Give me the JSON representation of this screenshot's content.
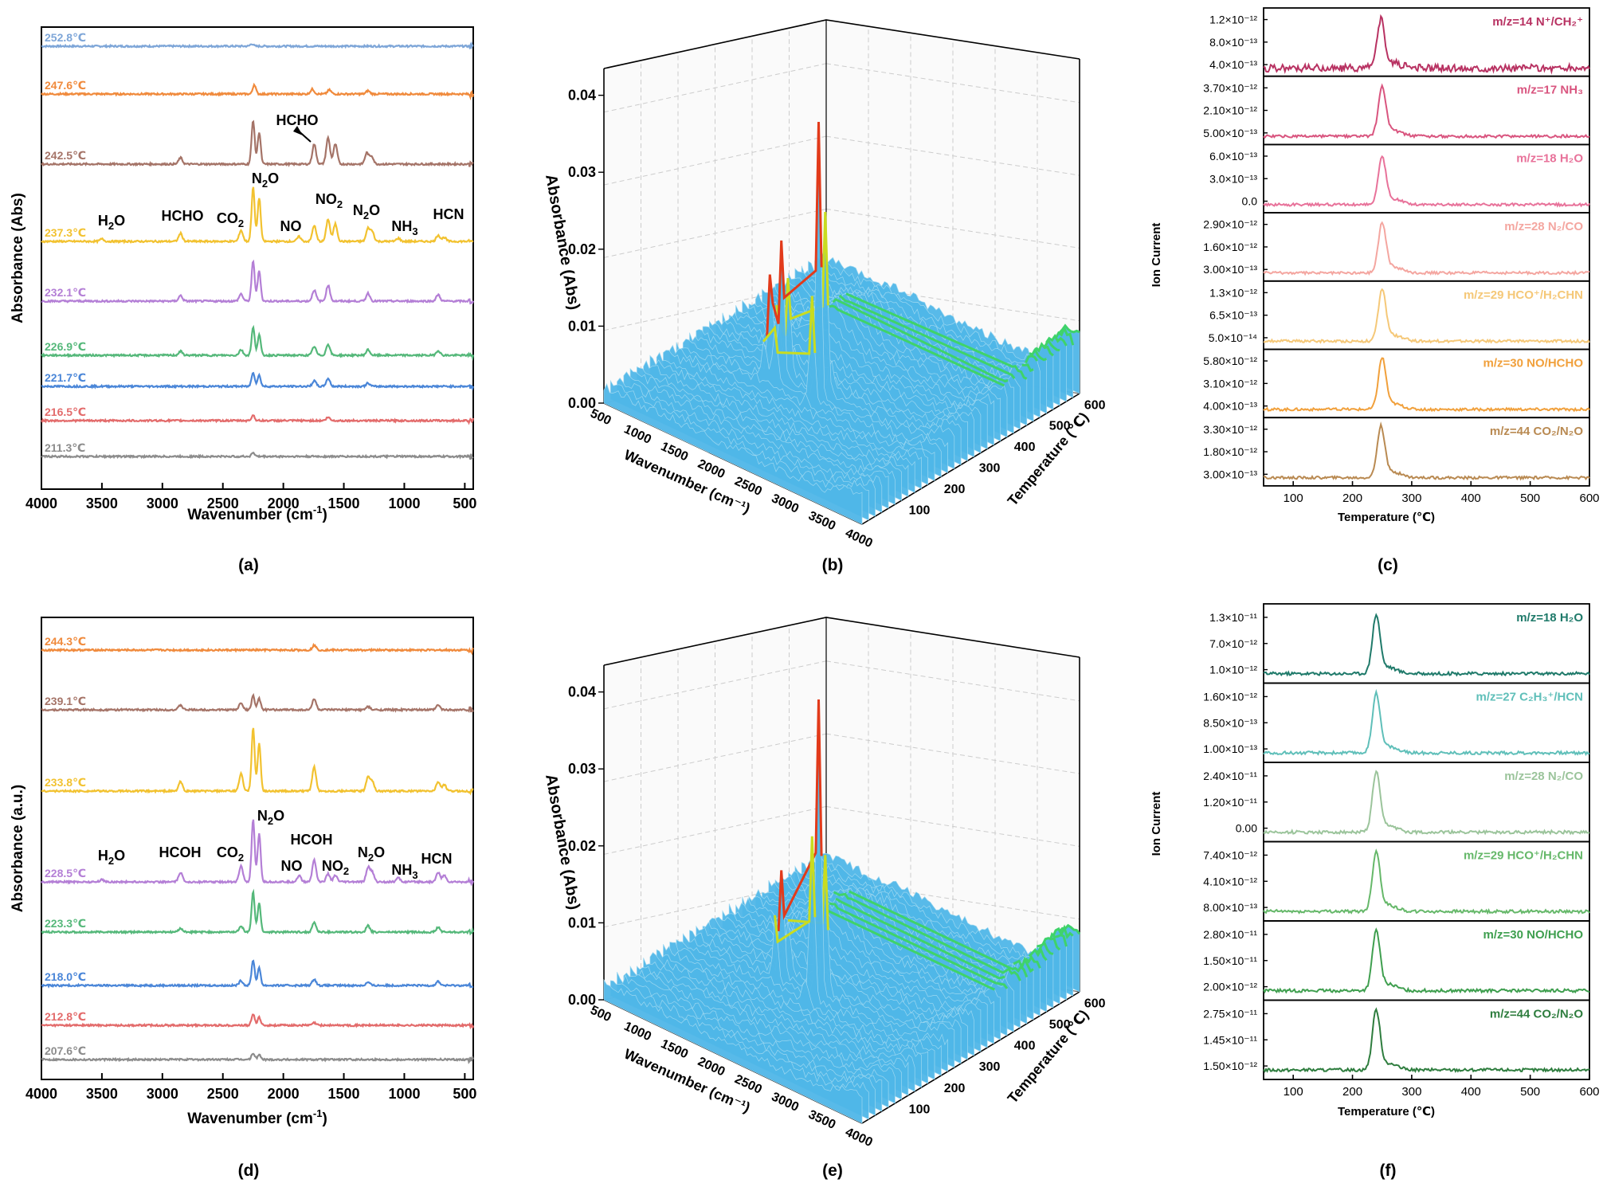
{
  "panel_labels": [
    "(a)",
    "(b)",
    "(c)",
    "(d)",
    "(e)",
    "(f)"
  ],
  "ftir": {
    "ylabel_a": "Absorbance (Abs)",
    "ylabel_d": "Absorbance (a.u.)",
    "xlabel_pre": "Wavenumber (cm",
    "xlabel_sup": "-1",
    "xlabel_post": ")",
    "xticks": [
      "4000",
      "3500",
      "3000",
      "2500",
      "2000",
      "1500",
      "1000",
      "500"
    ],
    "xtick_values": [
      4000,
      3500,
      3000,
      2500,
      2000,
      1500,
      1000,
      500
    ],
    "xlim": [
      4000,
      430
    ]
  },
  "surface": {
    "zlabel": "Absorbance (Abs)",
    "xlabel": "Wavenumber (cm⁻¹)",
    "ylabel": "Temperature (℃)",
    "zticks": [
      "0.00",
      "0.01",
      "0.02",
      "0.03",
      "0.04"
    ],
    "wticks": [
      "500",
      "1000",
      "1500",
      "2000",
      "2500",
      "3000",
      "3500",
      "4000"
    ],
    "tticks": [
      "100",
      "200",
      "300",
      "400",
      "500",
      "600"
    ]
  },
  "ms": {
    "ylabel": "Ion Current",
    "xlabel": "Temperature (℃)",
    "xticks": [
      "100",
      "200",
      "300",
      "400",
      "500",
      "600"
    ],
    "xtick_values": [
      100,
      200,
      300,
      400,
      500,
      600
    ],
    "xlim": [
      50,
      600
    ]
  },
  "chart_data": [
    {
      "panel": "(a)",
      "type": "line",
      "ylabel": "Absorbance (Abs)",
      "xlabel": "Wavenumber (cm-1)",
      "xlim": [
        4000,
        430
      ],
      "series": [
        {
          "name": "252.8℃",
          "color": "#7ea6d8",
          "peaks": [
            [
              2260,
              3
            ]
          ]
        },
        {
          "name": "247.6℃",
          "color": "#f08a3c",
          "peaks": [
            [
              2240,
              12
            ],
            [
              1760,
              6
            ],
            [
              1620,
              5
            ],
            [
              1300,
              4
            ]
          ]
        },
        {
          "name": "242.5℃",
          "color": "#a57468",
          "peaks": [
            [
              2850,
              8
            ],
            [
              2250,
              55
            ],
            [
              2200,
              40
            ],
            [
              1745,
              25
            ],
            [
              1630,
              33
            ],
            [
              1570,
              25
            ],
            [
              1310,
              14
            ],
            [
              1270,
              10
            ]
          ]
        },
        {
          "name": "237.3℃",
          "color": "#f2c230",
          "peaks": [
            [
              3500,
              3
            ],
            [
              2850,
              10
            ],
            [
              2350,
              14
            ],
            [
              2250,
              68
            ],
            [
              2200,
              55
            ],
            [
              1870,
              6
            ],
            [
              1745,
              20
            ],
            [
              1630,
              28
            ],
            [
              1570,
              22
            ],
            [
              1300,
              16
            ],
            [
              1265,
              12
            ],
            [
              1050,
              4
            ],
            [
              720,
              8
            ],
            [
              670,
              5
            ]
          ]
        },
        {
          "name": "232.1℃",
          "color": "#b47fd6",
          "peaks": [
            [
              2850,
              7
            ],
            [
              2350,
              9
            ],
            [
              2250,
              50
            ],
            [
              2200,
              38
            ],
            [
              1745,
              14
            ],
            [
              1630,
              20
            ],
            [
              1300,
              10
            ],
            [
              720,
              8
            ]
          ]
        },
        {
          "name": "226.9℃",
          "color": "#55b87a",
          "peaks": [
            [
              2850,
              5
            ],
            [
              2350,
              7
            ],
            [
              2250,
              35
            ],
            [
              2200,
              26
            ],
            [
              1745,
              11
            ],
            [
              1630,
              14
            ],
            [
              1300,
              7
            ],
            [
              720,
              6
            ]
          ]
        },
        {
          "name": "221.7℃",
          "color": "#4a86d8",
          "peaks": [
            [
              2250,
              18
            ],
            [
              2200,
              14
            ],
            [
              1745,
              7
            ],
            [
              1630,
              10
            ],
            [
              1300,
              4
            ]
          ]
        },
        {
          "name": "216.5℃",
          "color": "#e36b6b",
          "peaks": [
            [
              2250,
              7
            ],
            [
              1630,
              4
            ]
          ]
        },
        {
          "name": "211.3℃",
          "color": "#8c8c8c",
          "peaks": [
            [
              2250,
              5
            ]
          ]
        }
      ],
      "annotations": [
        "H2O",
        "HCHO",
        "CO2",
        "N2O",
        "NO",
        "NO2",
        "N2O",
        "NH3",
        "HCN",
        "HCHO"
      ]
    },
    {
      "panel": "(b)",
      "type": "area",
      "subtype": "3d-surface",
      "zlabel": "Absorbance (Abs)",
      "xlabel": "Wavenumber (cm-1)",
      "ylabel": "Temperature (℃)",
      "zlim": [
        0.0,
        0.04
      ],
      "xlim": [
        500,
        4000
      ],
      "ylim": [
        0,
        600
      ],
      "peaks": [
        {
          "wavenumber": 2250,
          "temperature": 240,
          "absorbance": 0.036
        },
        {
          "wavenumber": 1750,
          "temperature": 240,
          "absorbance": 0.018
        },
        {
          "wavenumber": 1600,
          "temperature": 240,
          "absorbance": 0.013
        }
      ]
    },
    {
      "panel": "(c)",
      "type": "line",
      "ylabel": "Ion Current",
      "xlabel": "Temperature (℃)",
      "xlim": [
        50,
        600
      ],
      "series": [
        {
          "name": "m/z=14  N⁺/CH₂⁺",
          "color": "#b83262",
          "yticks": [
            "1.2×10⁻¹²",
            "8.0×10⁻¹³",
            "4.0×10⁻¹³"
          ],
          "peak_temperature": 248,
          "height": 0.85
        },
        {
          "name": "m/z=17  NH₃",
          "color": "#d9557f",
          "yticks": [
            "3.70×10⁻¹²",
            "2.10×10⁻¹²",
            "5.00×10⁻¹³"
          ],
          "peak_temperature": 250,
          "height": 0.88
        },
        {
          "name": "m/z=18  H₂O",
          "color": "#e8729a",
          "yticks": [
            "6.0×10⁻¹³",
            "3.0×10⁻¹³",
            "0.0"
          ],
          "peak_temperature": 250,
          "height": 0.85
        },
        {
          "name": "m/z=28  N₂/CO",
          "color": "#f4a6a0",
          "yticks": [
            "2.90×10⁻¹²",
            "1.60×10⁻¹²",
            "3.00×10⁻¹³"
          ],
          "peak_temperature": 250,
          "height": 0.9
        },
        {
          "name": "m/z=29  HCO⁺/H₂CHN",
          "color": "#f5c878",
          "yticks": [
            "1.3×10⁻¹²",
            "6.5×10⁻¹³",
            "5.0×10⁻¹⁴"
          ],
          "peak_temperature": 250,
          "height": 0.92
        },
        {
          "name": "m/z=30  NO/HCHO",
          "color": "#f1a03b",
          "yticks": [
            "5.80×10⁻¹²",
            "3.10×10⁻¹²",
            "4.00×10⁻¹³"
          ],
          "peak_temperature": 250,
          "height": 0.92
        },
        {
          "name": "m/z=44  CO₂/N₂O",
          "color": "#b98a52",
          "yticks": [
            "3.30×10⁻¹²",
            "1.80×10⁻¹²",
            "3.00×10⁻¹³"
          ],
          "peak_temperature": 248,
          "height": 0.92
        }
      ]
    },
    {
      "panel": "(d)",
      "type": "line",
      "ylabel": "Absorbance (a.u.)",
      "xlabel": "Wavenumber (cm-1)",
      "xlim": [
        4000,
        430
      ],
      "series": [
        {
          "name": "244.3℃",
          "color": "#f08a3c",
          "peaks": [
            [
              1745,
              6
            ]
          ]
        },
        {
          "name": "239.1℃",
          "color": "#a57468",
          "peaks": [
            [
              2850,
              6
            ],
            [
              2350,
              9
            ],
            [
              2250,
              18
            ],
            [
              2200,
              14
            ],
            [
              1745,
              14
            ],
            [
              1300,
              4
            ],
            [
              720,
              6
            ]
          ]
        },
        {
          "name": "233.8℃",
          "color": "#f2c230",
          "peaks": [
            [
              2850,
              12
            ],
            [
              2350,
              22
            ],
            [
              2250,
              80
            ],
            [
              2200,
              60
            ],
            [
              1745,
              30
            ],
            [
              1300,
              18
            ],
            [
              1265,
              12
            ],
            [
              720,
              12
            ],
            [
              670,
              8
            ]
          ]
        },
        {
          "name": "228.5℃",
          "color": "#b47fd6",
          "peaks": [
            [
              3500,
              3
            ],
            [
              2850,
              12
            ],
            [
              2350,
              20
            ],
            [
              2250,
              78
            ],
            [
              2200,
              60
            ],
            [
              1870,
              8
            ],
            [
              1745,
              28
            ],
            [
              1630,
              10
            ],
            [
              1570,
              8
            ],
            [
              1300,
              18
            ],
            [
              1265,
              12
            ],
            [
              1050,
              5
            ],
            [
              720,
              12
            ],
            [
              670,
              8
            ]
          ]
        },
        {
          "name": "223.3℃",
          "color": "#55b87a",
          "peaks": [
            [
              2850,
              5
            ],
            [
              2350,
              8
            ],
            [
              2250,
              50
            ],
            [
              2200,
              36
            ],
            [
              1745,
              12
            ],
            [
              1300,
              8
            ],
            [
              720,
              6
            ]
          ]
        },
        {
          "name": "218.0℃",
          "color": "#4a86d8",
          "peaks": [
            [
              2350,
              6
            ],
            [
              2250,
              32
            ],
            [
              2200,
              22
            ],
            [
              1745,
              8
            ],
            [
              1300,
              4
            ],
            [
              720,
              5
            ]
          ]
        },
        {
          "name": "212.8℃",
          "color": "#e36b6b",
          "peaks": [
            [
              2250,
              14
            ],
            [
              2200,
              10
            ],
            [
              1745,
              3
            ]
          ]
        },
        {
          "name": "207.6℃",
          "color": "#8c8c8c",
          "peaks": [
            [
              2250,
              8
            ],
            [
              2200,
              6
            ]
          ]
        }
      ],
      "annotations": [
        "H2O",
        "HCOH",
        "CO2",
        "N2O",
        "NO",
        "HCOH",
        "NO2",
        "N2O",
        "NH3",
        "HCN"
      ]
    },
    {
      "panel": "(e)",
      "type": "area",
      "subtype": "3d-surface",
      "zlabel": "Absorbance (Abs)",
      "xlabel": "Wavenumber (cm-1)",
      "ylabel": "Temperature (℃)",
      "zlim": [
        0.0,
        0.04
      ],
      "xlim": [
        500,
        4000
      ],
      "ylim": [
        0,
        600
      ],
      "peaks": [
        {
          "wavenumber": 2250,
          "temperature": 235,
          "absorbance": 0.038
        },
        {
          "wavenumber": 1750,
          "temperature": 235,
          "absorbance": 0.014
        }
      ]
    },
    {
      "panel": "(f)",
      "type": "line",
      "ylabel": "Ion Current",
      "xlabel": "Temperature (℃)",
      "xlim": [
        50,
        600
      ],
      "series": [
        {
          "name": "m/z=18  H₂O",
          "color": "#1f7a6a",
          "yticks": [
            "1.3×10⁻¹¹",
            "7.0×10⁻¹²",
            "1.0×10⁻¹²"
          ],
          "peak_temperature": 240,
          "height": 0.9
        },
        {
          "name": "m/z=27  C₂H₃⁺/HCN",
          "color": "#5fbfb9",
          "yticks": [
            "1.60×10⁻¹²",
            "8.50×10⁻¹³",
            "1.00×10⁻¹³"
          ],
          "peak_temperature": 240,
          "height": 0.92
        },
        {
          "name": "m/z=28  N₂/CO",
          "color": "#9bc49b",
          "yticks": [
            "2.40×10⁻¹¹",
            "1.20×10⁻¹¹",
            "0.00"
          ],
          "peak_temperature": 240,
          "height": 0.92
        },
        {
          "name": "m/z=29  HCO⁺/H₂CHN",
          "color": "#66b86a",
          "yticks": [
            "7.40×10⁻¹²",
            "4.10×10⁻¹²",
            "8.00×10⁻¹³"
          ],
          "peak_temperature": 240,
          "height": 0.92
        },
        {
          "name": "m/z=30  NO/HCHO",
          "color": "#3f9f4f",
          "yticks": [
            "2.80×10⁻¹¹",
            "1.50×10⁻¹¹",
            "2.00×10⁻¹²"
          ],
          "peak_temperature": 240,
          "height": 0.92
        },
        {
          "name": "m/z=44  CO₂/N₂O",
          "color": "#2e7d3e",
          "yticks": [
            "2.75×10⁻¹¹",
            "1.45×10⁻¹¹",
            "1.50×10⁻¹²"
          ],
          "peak_temperature": 240,
          "height": 0.92
        }
      ]
    }
  ]
}
